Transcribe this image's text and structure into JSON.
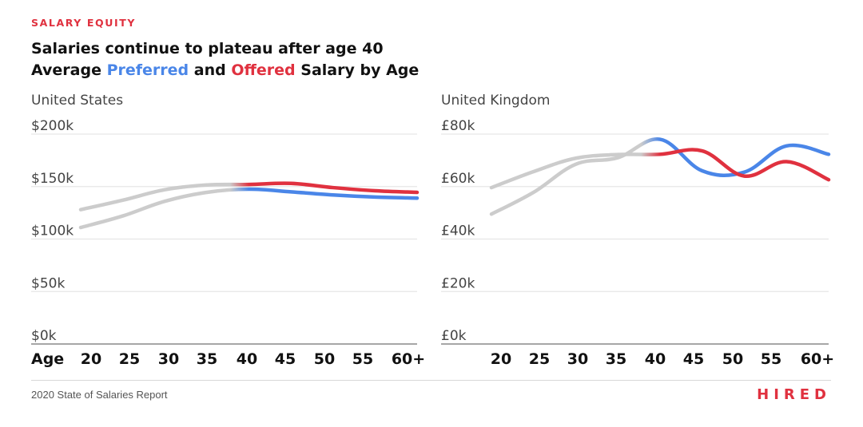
{
  "header": {
    "eyebrow": "SALARY EQUITY",
    "title_line1": "Salaries continue to plateau after age 40",
    "title_line2_parts": [
      "Average ",
      "Preferred",
      " and ",
      "Offered",
      " Salary by Age"
    ]
  },
  "colors": {
    "accent": "#e0313f",
    "preferred": "#4a86e8",
    "offered": "#e0313f",
    "faded": "#cccccc",
    "grid": "#e6e6e6",
    "axis": "#888888",
    "tick_text": "#444444"
  },
  "footer": {
    "source": "2020 State of Salaries Report",
    "logo": "HIRED"
  },
  "chart_data": [
    {
      "type": "line",
      "title": "United States",
      "xlabel": "Age",
      "ylabel": "",
      "categories": [
        "20",
        "25",
        "30",
        "35",
        "40",
        "45",
        "50",
        "55",
        "60+"
      ],
      "y_ticks": [
        "$0k",
        "$50k",
        "$100k",
        "$150k",
        "$200k"
      ],
      "y_tick_values": [
        0,
        50,
        100,
        150,
        200
      ],
      "ylim": [
        0,
        200
      ],
      "grid": true,
      "highlight_from_age": "40",
      "series": [
        {
          "name": "Preferred",
          "values": [
            111,
            122,
            136,
            144.5,
            147.5,
            145,
            142,
            140,
            139
          ]
        },
        {
          "name": "Offered",
          "values": [
            128,
            137,
            147,
            151.5,
            152,
            153,
            149,
            146,
            144.5
          ]
        }
      ]
    },
    {
      "type": "line",
      "title": "United Kingdom",
      "xlabel": "",
      "ylabel": "",
      "categories": [
        "20",
        "25",
        "30",
        "35",
        "40",
        "45",
        "50",
        "55",
        "60+"
      ],
      "y_ticks": [
        "£0k",
        "£20k",
        "£40k",
        "£60k",
        "£80k"
      ],
      "y_tick_values": [
        0,
        20,
        40,
        60,
        80
      ],
      "ylim": [
        0,
        80
      ],
      "grid": true,
      "highlight_from_age": "40",
      "series": [
        {
          "name": "Preferred",
          "values": [
            49.5,
            57.8,
            68.5,
            71,
            78,
            66,
            65.5,
            75.5,
            72.3
          ]
        },
        {
          "name": "Offered",
          "values": [
            59.6,
            65.7,
            70.8,
            72.2,
            72.3,
            73.6,
            64,
            69.5,
            62.6
          ]
        }
      ]
    }
  ]
}
